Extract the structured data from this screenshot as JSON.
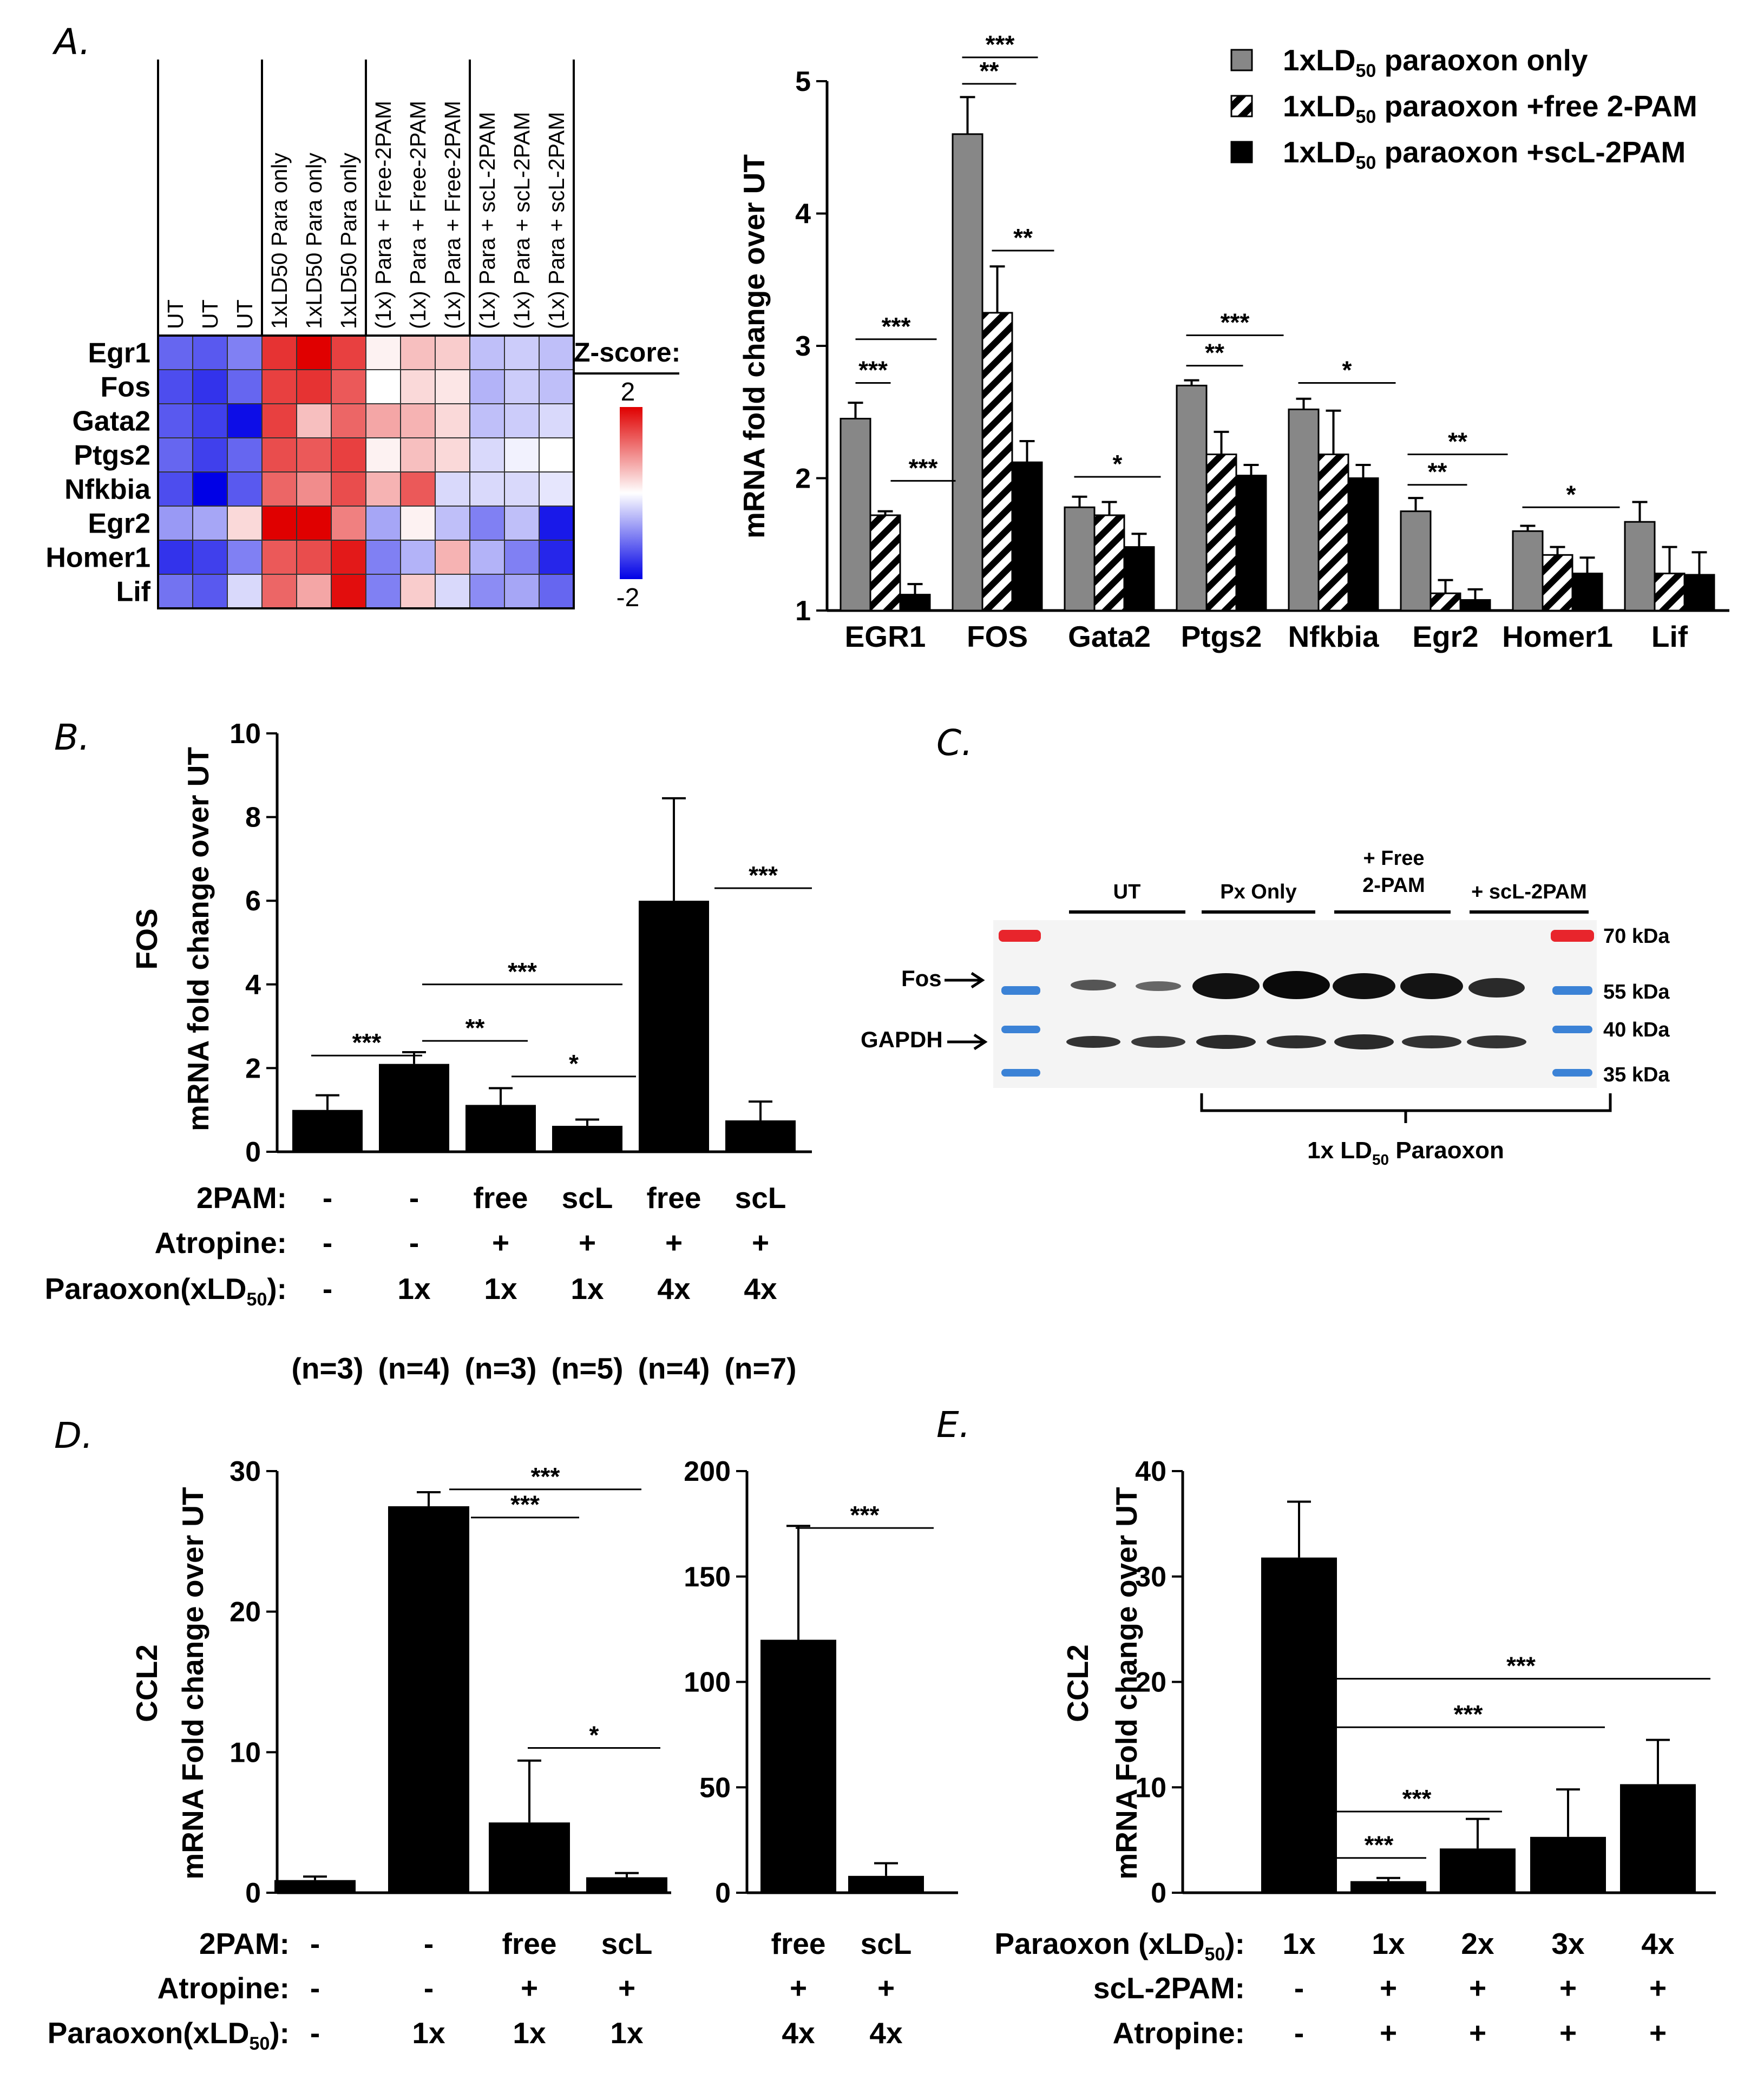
{
  "panels": {
    "A": {
      "label": "A.",
      "heatmap": {
        "column_groups": [
          {
            "columns": [
              "UT",
              "UT",
              "UT"
            ]
          },
          {
            "columns": [
              "1xLD50  Para only",
              "1xLD50  Para only",
              "1xLD50  Para only"
            ]
          },
          {
            "columns": [
              "(1x)  Para + Free-2PAM",
              "(1x)  Para + Free-2PAM",
              "(1x)  Para + Free-2PAM"
            ]
          },
          {
            "columns": [
              "(1x)  Para + scL-2PAM",
              "(1x)  Para + scL-2PAM",
              "(1x)  Para + scL-2PAM"
            ]
          }
        ],
        "rows": [
          "Egr1",
          "Fos",
          "Gata2",
          "Ptgs2",
          "Nfkbia",
          "Egr2",
          "Homer1",
          "Lif"
        ],
        "zscores": [
          [
            -1.2,
            -1.3,
            -1.0,
            1.6,
            2.0,
            1.5,
            0.1,
            0.5,
            0.4,
            -0.5,
            -0.4,
            -0.5
          ],
          [
            -1.4,
            -1.6,
            -1.2,
            1.5,
            1.6,
            1.3,
            0.0,
            0.3,
            0.2,
            -0.6,
            -0.4,
            -0.5
          ],
          [
            -1.3,
            -1.5,
            -1.9,
            1.5,
            0.5,
            1.2,
            0.7,
            0.6,
            0.3,
            -0.5,
            -0.4,
            -0.3
          ],
          [
            -1.2,
            -1.5,
            -1.2,
            1.4,
            1.3,
            1.5,
            0.1,
            0.5,
            0.3,
            -0.3,
            -0.1,
            0.0
          ],
          [
            -1.4,
            -2.0,
            -1.3,
            1.2,
            0.9,
            1.4,
            0.6,
            1.3,
            -0.3,
            -0.3,
            -0.3,
            -0.2
          ],
          [
            -0.8,
            -0.7,
            0.3,
            2.0,
            2.0,
            1.0,
            -0.7,
            0.1,
            -0.5,
            -1.0,
            -0.5,
            -1.8
          ],
          [
            -1.6,
            -1.5,
            -1.0,
            1.3,
            1.4,
            1.8,
            -1.0,
            -0.6,
            0.6,
            -0.6,
            -1.0,
            -1.7
          ],
          [
            -1.1,
            -1.3,
            -0.3,
            1.2,
            0.7,
            1.9,
            -1.0,
            0.4,
            -0.3,
            -0.9,
            -0.7,
            -1.2
          ]
        ],
        "colorbar": {
          "title": "Z-score:",
          "max": "2",
          "min": "-2",
          "high_color": "#e00000",
          "mid_color": "#ffffff",
          "low_color": "#0000e6"
        }
      },
      "chart_data": {
        "type": "bar",
        "ylabel": "mRNA fold change over UT",
        "ylim": [
          1,
          5
        ],
        "yticks": [
          "1",
          "2",
          "3",
          "4",
          "5"
        ],
        "categories": [
          "EGR1",
          "FOS",
          "Gata2",
          "Ptgs2",
          "Nfkbia",
          "Egr2",
          "Homer1",
          "Lif"
        ],
        "series": [
          {
            "name": "1xLD50 paraoxon only",
            "legend_main": "1xLD",
            "legend_sub": "50",
            "legend_tail": " paraoxon only",
            "fill": "gray",
            "values": [
              2.45,
              4.6,
              1.78,
              2.7,
              2.52,
              1.75,
              1.6,
              1.67
            ],
            "errors": [
              0.12,
              0.28,
              0.08,
              0.04,
              0.08,
              0.1,
              0.04,
              0.15
            ]
          },
          {
            "name": "1xLD50 paraoxon +free 2-PAM",
            "legend_main": "1xLD",
            "legend_sub": "50",
            "legend_tail": " paraoxon +free 2-PAM",
            "fill": "hatch",
            "values": [
              1.72,
              3.25,
              1.72,
              2.18,
              2.18,
              1.13,
              1.42,
              1.28
            ],
            "errors": [
              0.03,
              0.35,
              0.1,
              0.17,
              0.33,
              0.1,
              0.06,
              0.2
            ]
          },
          {
            "name": "1xLD50 paraoxon +scL-2PAM",
            "legend_main": "1xLD",
            "legend_sub": "50",
            "legend_tail": " paraoxon +scL-2PAM",
            "fill": "black",
            "values": [
              1.12,
              2.12,
              1.48,
              2.02,
              2.0,
              1.08,
              1.28,
              1.27
            ],
            "errors": [
              0.08,
              0.16,
              0.1,
              0.08,
              0.1,
              0.08,
              0.12,
              0.17
            ]
          }
        ],
        "significance": [
          "***",
          "***",
          "***",
          "***",
          "**",
          "**",
          "*",
          "***",
          "**",
          "*",
          "**",
          "**",
          "*"
        ]
      }
    },
    "B": {
      "label": "B.",
      "chart_data": {
        "type": "bar",
        "ylabel_gene": "FOS",
        "ylabel": "mRNA fold change over UT",
        "ylim": [
          0,
          10
        ],
        "yticks": [
          "0",
          "2",
          "4",
          "6",
          "8",
          "10"
        ],
        "values": [
          1.0,
          2.1,
          1.12,
          0.62,
          6.0,
          0.75
        ],
        "errors": [
          0.35,
          0.28,
          0.4,
          0.15,
          2.45,
          0.45
        ],
        "significance": [
          "***",
          "**",
          "***",
          "*",
          "***"
        ],
        "conditions": {
          "row_labels": [
            "2PAM:",
            "Atropine:",
            "Paraoxon(xLD"
          ],
          "paraoxon_sub": "50",
          "paraoxon_tail": "):",
          "twopam": [
            "-",
            "-",
            "free",
            "scL",
            "free",
            "scL"
          ],
          "atropine": [
            "-",
            "-",
            "+",
            "+",
            "+",
            "+"
          ],
          "paraoxon": [
            "-",
            "1x",
            "1x",
            "1x",
            "4x",
            "4x"
          ]
        },
        "n_values": [
          "(n=3)",
          "(n=4)",
          "(n=3)",
          "(n=5)",
          "(n=4)",
          "(n=7)"
        ]
      }
    },
    "C": {
      "label": "C.",
      "blot": {
        "groups": [
          "UT",
          "Px Only",
          "+ Free",
          "2-PAM",
          "+ scL-2PAM"
        ],
        "bands": [
          "Fos",
          "GAPDH"
        ],
        "markers": [
          "70 kDa",
          "55 kDa",
          "40 kDa",
          "35 kDa"
        ],
        "bracket_label": "1x LD",
        "bracket_sub": "50",
        "bracket_tail": " Paraoxon"
      }
    },
    "D": {
      "label": "D.",
      "chart_data": [
        {
          "type": "bar",
          "ylabel_gene": "CCL2",
          "ylabel": "mRNA Fold change over UT",
          "ylim": [
            0,
            30
          ],
          "yticks": [
            "0",
            "10",
            "20",
            "30"
          ],
          "values": [
            0.9,
            27.5,
            5.0,
            1.1
          ],
          "errors": [
            0.25,
            1.0,
            4.4,
            0.3
          ],
          "significance": [
            "***",
            "***",
            "*"
          ],
          "twopam": [
            "-",
            "-",
            "free",
            "scL"
          ],
          "atropine": [
            "-",
            "-",
            "+",
            "+"
          ],
          "paraoxon": [
            "-",
            "1x",
            "1x",
            "1x"
          ]
        },
        {
          "type": "bar",
          "ylim": [
            0,
            200
          ],
          "yticks": [
            "0",
            "50",
            "100",
            "150",
            "200"
          ],
          "values": [
            120,
            8
          ],
          "errors": [
            54,
            6
          ],
          "significance": [
            "***"
          ],
          "twopam": [
            "free",
            "scL"
          ],
          "atropine": [
            "+",
            "+"
          ],
          "paraoxon": [
            "4x",
            "4x"
          ]
        }
      ],
      "row_labels": [
        "2PAM:",
        "Atropine:",
        "Paraoxon(xLD"
      ],
      "paraoxon_sub": "50",
      "paraoxon_tail": "):"
    },
    "E": {
      "label": "E.",
      "chart_data": {
        "type": "bar",
        "ylabel_gene": "CCL2",
        "ylabel": "mRNA Fold change over UT",
        "ylim": [
          0,
          40
        ],
        "yticks": [
          "0",
          "10",
          "20",
          "30",
          "40"
        ],
        "values": [
          31.8,
          1.1,
          4.2,
          5.3,
          10.3
        ],
        "errors": [
          5.3,
          0.3,
          2.8,
          4.5,
          4.2
        ],
        "significance": [
          "***",
          "***",
          "***",
          "***"
        ],
        "paraoxon": [
          "1x",
          "1x",
          "2x",
          "3x",
          "4x"
        ],
        "scl2pam": [
          "-",
          "+",
          "+",
          "+",
          "+"
        ],
        "atropine": [
          "-",
          "+",
          "+",
          "+",
          "+"
        ]
      },
      "row_labels": [
        "Paraoxon (xLD",
        "scL-2PAM:",
        "Atropine:"
      ],
      "paraoxon_sub": "50",
      "paraoxon_tail": "):"
    }
  }
}
